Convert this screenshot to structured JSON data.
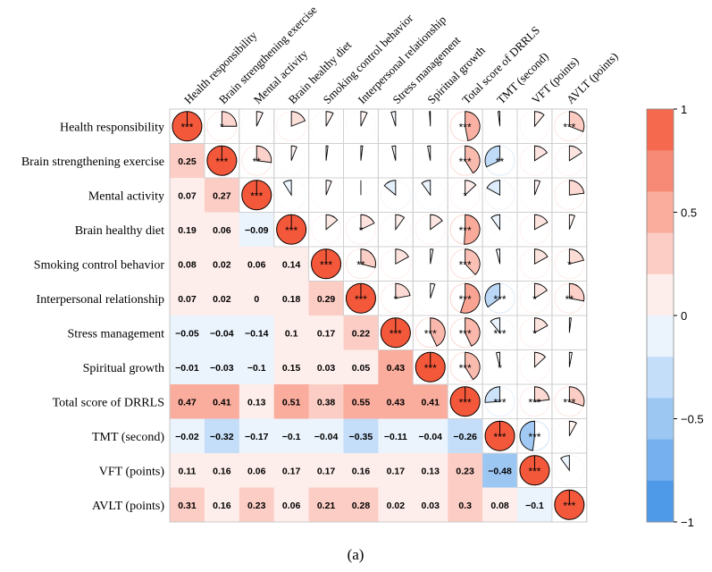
{
  "chart_data": {
    "type": "heatmap",
    "variables": [
      "Health responsibility",
      "Brain strengthening exercise",
      "Mental activity",
      "Brain healthy diet",
      "Smoking control behavior",
      "Interpersonal relationship",
      "Stress management",
      "Spiritual growth",
      "Total score of DRRLS",
      "TMT (second)",
      "VFT (points)",
      "AVLT (points)"
    ],
    "row_labels": [
      "Health responsibility",
      "Brain strengthening exercise",
      "Mental activity",
      "Brain healthy diet",
      "Smoking control behavior",
      "Interpersonal relationship",
      "Stress management",
      "Spiritual growth",
      "Total score of  DRRLS",
      "TMT (second)",
      "VFT (points)",
      "AVLT (points)"
    ],
    "column_labels": [
      "Health responsibility",
      "Brain strengthening exercise",
      "Mental activity",
      "Brain healthy diet",
      "Smoking control behavior",
      "Interpersonal relationship",
      "Stress management",
      "Spiritual growth",
      "Total score of  DRRLS",
      "TMT (second)",
      "VFT (points)",
      "AVLT (points)"
    ],
    "lower_values": [
      [],
      [
        0.25
      ],
      [
        0.07,
        0.27
      ],
      [
        0.19,
        0.06,
        -0.09
      ],
      [
        0.08,
        0.02,
        0.06,
        0.14
      ],
      [
        0.07,
        0.02,
        0,
        0.18,
        0.29
      ],
      [
        -0.05,
        -0.04,
        -0.14,
        0.1,
        0.17,
        0.22
      ],
      [
        -0.01,
        -0.03,
        -0.1,
        0.15,
        0.03,
        0.05,
        0.43
      ],
      [
        0.47,
        0.41,
        0.13,
        0.51,
        0.38,
        0.55,
        0.43,
        0.41
      ],
      [
        -0.02,
        -0.32,
        -0.17,
        -0.1,
        -0.04,
        -0.35,
        -0.11,
        -0.04,
        -0.26
      ],
      [
        0.11,
        0.16,
        0.06,
        0.17,
        0.17,
        0.16,
        0.17,
        0.13,
        0.23,
        -0.48
      ],
      [
        0.31,
        0.16,
        0.23,
        0.06,
        0.21,
        0.28,
        0.02,
        0.03,
        0.3,
        0.08,
        -0.1
      ]
    ],
    "lower_labels": [
      [],
      [
        "0.25"
      ],
      [
        "0.07",
        "0.27"
      ],
      [
        "0.19",
        "0.06",
        "−0.09"
      ],
      [
        "0.08",
        "0.02",
        "0.06",
        "0.14"
      ],
      [
        "0.07",
        "0.02",
        "0",
        "0.18",
        "0.29"
      ],
      [
        "−0.05",
        "−0.04",
        "−0.14",
        "0.1",
        "0.17",
        "0.22"
      ],
      [
        "−0.01",
        "−0.03",
        "−0.1",
        "0.15",
        "0.03",
        "0.05",
        "0.43"
      ],
      [
        "0.47",
        "0.41",
        "0.13",
        "0.51",
        "0.38",
        "0.55",
        "0.43",
        "0.41"
      ],
      [
        "−0.02",
        "−0.32",
        "−0.17",
        "−0.1",
        "−0.04",
        "−0.35",
        "−0.11",
        "−0.04",
        "−0.26"
      ],
      [
        "0.11",
        "0.16",
        "0.06",
        "0.17",
        "0.17",
        "0.16",
        "0.17",
        "0.13",
        "0.23",
        "−0.48"
      ],
      [
        "0.31",
        "0.16",
        "0.23",
        "0.06",
        "0.21",
        "0.28",
        "0.02",
        "0.03",
        "0.3",
        "0.08",
        "−0.1"
      ]
    ],
    "upper_significance": [
      [
        "***",
        "*",
        "",
        "",
        "",
        "",
        "",
        "",
        "***",
        "",
        "",
        "***"
      ],
      [
        "",
        "***",
        "**",
        "",
        "",
        "",
        "",
        "",
        "***",
        "**",
        "",
        ""
      ],
      [
        "",
        "",
        "***",
        "",
        "",
        "",
        "",
        "",
        "*",
        "",
        "",
        ""
      ],
      [
        "",
        "",
        "",
        "***",
        "",
        "*",
        "",
        "",
        "***",
        "",
        "",
        ""
      ],
      [
        "",
        "",
        "",
        "",
        "***",
        "**",
        "",
        "",
        "***",
        "",
        "",
        "*"
      ],
      [
        "",
        "",
        "",
        "",
        "",
        "***",
        "*",
        "",
        "***",
        "***",
        "*",
        "**"
      ],
      [
        "",
        "",
        "",
        "",
        "",
        "",
        "***",
        "***",
        "***",
        "***",
        "*",
        ""
      ],
      [
        "",
        "",
        "",
        "",
        "",
        "",
        "",
        "***",
        "***",
        "*",
        "",
        ""
      ],
      [
        "",
        "",
        "",
        "",
        "",
        "",
        "",
        "",
        "***",
        "***",
        "***",
        "***"
      ],
      [
        "",
        "",
        "",
        "",
        "",
        "",
        "",
        "",
        "",
        "***",
        "***",
        ""
      ],
      [
        "",
        "",
        "",
        "",
        "",
        "",
        "",
        "",
        "",
        "",
        "***",
        ""
      ],
      [
        "",
        "",
        "",
        "",
        "",
        "",
        "",
        "",
        "",
        "",
        "",
        "***"
      ]
    ],
    "diagonal_value": 1,
    "color_scale": {
      "range": [
        -1,
        1
      ],
      "ticks": [
        1,
        0.5,
        0,
        -0.5,
        -1
      ],
      "tick_labels": [
        "1",
        "0.5",
        "0",
        "−0.5",
        "−1"
      ],
      "negative_color": "#3b8ee6",
      "neutral_color": "#ffffff",
      "positive_color": "#f4583b"
    },
    "caption": "(a)"
  }
}
